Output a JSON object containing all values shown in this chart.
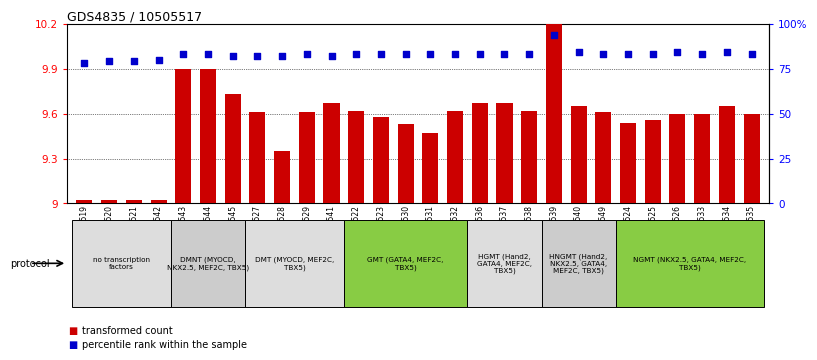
{
  "title": "GDS4835 / 10505517",
  "samples": [
    "GSM1100519",
    "GSM1100520",
    "GSM1100521",
    "GSM1100542",
    "GSM1100543",
    "GSM1100544",
    "GSM1100545",
    "GSM1100527",
    "GSM1100528",
    "GSM1100529",
    "GSM1100541",
    "GSM1100522",
    "GSM1100523",
    "GSM1100530",
    "GSM1100531",
    "GSM1100532",
    "GSM1100536",
    "GSM1100537",
    "GSM1100538",
    "GSM1100539",
    "GSM1100540",
    "GSM1102649",
    "GSM1100524",
    "GSM1100525",
    "GSM1100526",
    "GSM1100533",
    "GSM1100534",
    "GSM1100535"
  ],
  "bar_values": [
    9.02,
    9.02,
    9.02,
    9.02,
    9.9,
    9.9,
    9.73,
    9.61,
    9.35,
    9.61,
    9.67,
    9.62,
    9.58,
    9.53,
    9.47,
    9.62,
    9.67,
    9.67,
    9.62,
    10.2,
    9.65,
    9.61,
    9.54,
    9.56,
    9.6,
    9.6,
    9.65,
    9.6
  ],
  "dot_values": [
    78,
    79,
    79,
    80,
    83,
    83,
    82,
    82,
    82,
    83,
    82,
    83,
    83,
    83,
    83,
    83,
    83,
    83,
    83,
    94,
    84,
    83,
    83,
    83,
    84,
    83,
    84,
    83
  ],
  "ylim_left": [
    9.0,
    10.2
  ],
  "ylim_right": [
    0,
    100
  ],
  "yticks_left": [
    9.0,
    9.3,
    9.6,
    9.9,
    10.2
  ],
  "ytick_labels_left": [
    "9",
    "9.3",
    "9.6",
    "9.9",
    "10.2"
  ],
  "yticks_right": [
    0,
    25,
    50,
    75,
    100
  ],
  "ytick_labels_right": [
    "0",
    "25",
    "50",
    "75",
    "100%"
  ],
  "bar_color": "#cc0000",
  "dot_color": "#0000cc",
  "groups": [
    {
      "label": "no transcription\nfactors",
      "start": 0,
      "end": 3,
      "color": "#dddddd"
    },
    {
      "label": "DMNT (MYOCD,\nNKX2.5, MEF2C, TBX5)",
      "start": 4,
      "end": 6,
      "color": "#cccccc"
    },
    {
      "label": "DMT (MYOCD, MEF2C,\nTBX5)",
      "start": 7,
      "end": 10,
      "color": "#dddddd"
    },
    {
      "label": "GMT (GATA4, MEF2C,\nTBX5)",
      "start": 11,
      "end": 15,
      "color": "#88cc44"
    },
    {
      "label": "HGMT (Hand2,\nGATA4, MEF2C,\nTBX5)",
      "start": 16,
      "end": 18,
      "color": "#dddddd"
    },
    {
      "label": "HNGMT (Hand2,\nNKX2.5, GATA4,\nMEF2C, TBX5)",
      "start": 19,
      "end": 21,
      "color": "#cccccc"
    },
    {
      "label": "NGMT (NKX2.5, GATA4, MEF2C,\nTBX5)",
      "start": 22,
      "end": 27,
      "color": "#88cc44"
    }
  ],
  "legend_bar_label": "transformed count",
  "legend_dot_label": "percentile rank within the sample",
  "protocol_label": "protocol"
}
